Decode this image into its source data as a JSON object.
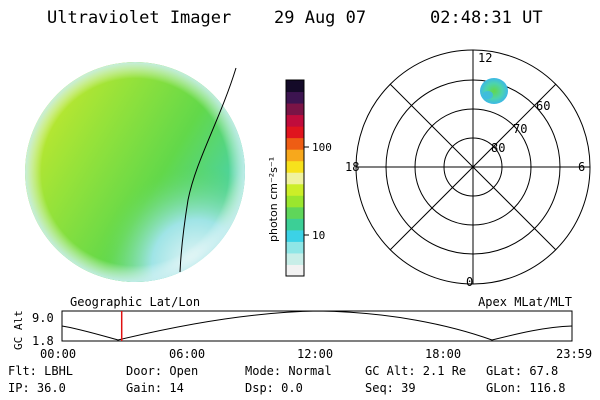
{
  "header": {
    "title": "Ultraviolet Imager",
    "date": "29 Aug 07",
    "time": "02:48:31 UT"
  },
  "colorbar": {
    "unit_label": "photon cm⁻²s⁻¹",
    "ticks": [
      "100",
      "10"
    ],
    "colors": [
      "#f2f2f2",
      "#c8eee8",
      "#8fe6e6",
      "#3cd2e6",
      "#3ccf96",
      "#5fd65a",
      "#9ae62e",
      "#ccee28",
      "#f0f2a0",
      "#f7e21c",
      "#f7a81c",
      "#ee5d14",
      "#e0141e",
      "#c00c3c",
      "#7a1446",
      "#3c1450",
      "#140a28"
    ]
  },
  "polar_plot": {
    "clock_labels": [
      "12",
      "18",
      "6",
      "0"
    ],
    "lat_labels": [
      "60",
      "70",
      "80"
    ]
  },
  "timeline": {
    "y_label": "GC Alt",
    "y_ticks": [
      "9.0",
      "1.8"
    ],
    "left_label": "Geographic Lat/Lon",
    "right_label": "Apex MLat/MLT",
    "x_ticks": [
      "00:00",
      "06:00",
      "12:00",
      "18:00",
      "23:59"
    ],
    "marker_time": "02:48:31",
    "marker_fraction": 0.117
  },
  "info": {
    "flt": "Flt: LBHL",
    "ip": "IP: 36.0",
    "door": "Door: Open",
    "gain": "Gain: 14",
    "mode": "Mode: Normal",
    "dsp": "Dsp:    0.0",
    "gc_alt": "GC Alt: 2.1 Re",
    "seq": "Seq: 39",
    "glat": "GLat:  67.8",
    "glon": "GLon: 116.8"
  }
}
